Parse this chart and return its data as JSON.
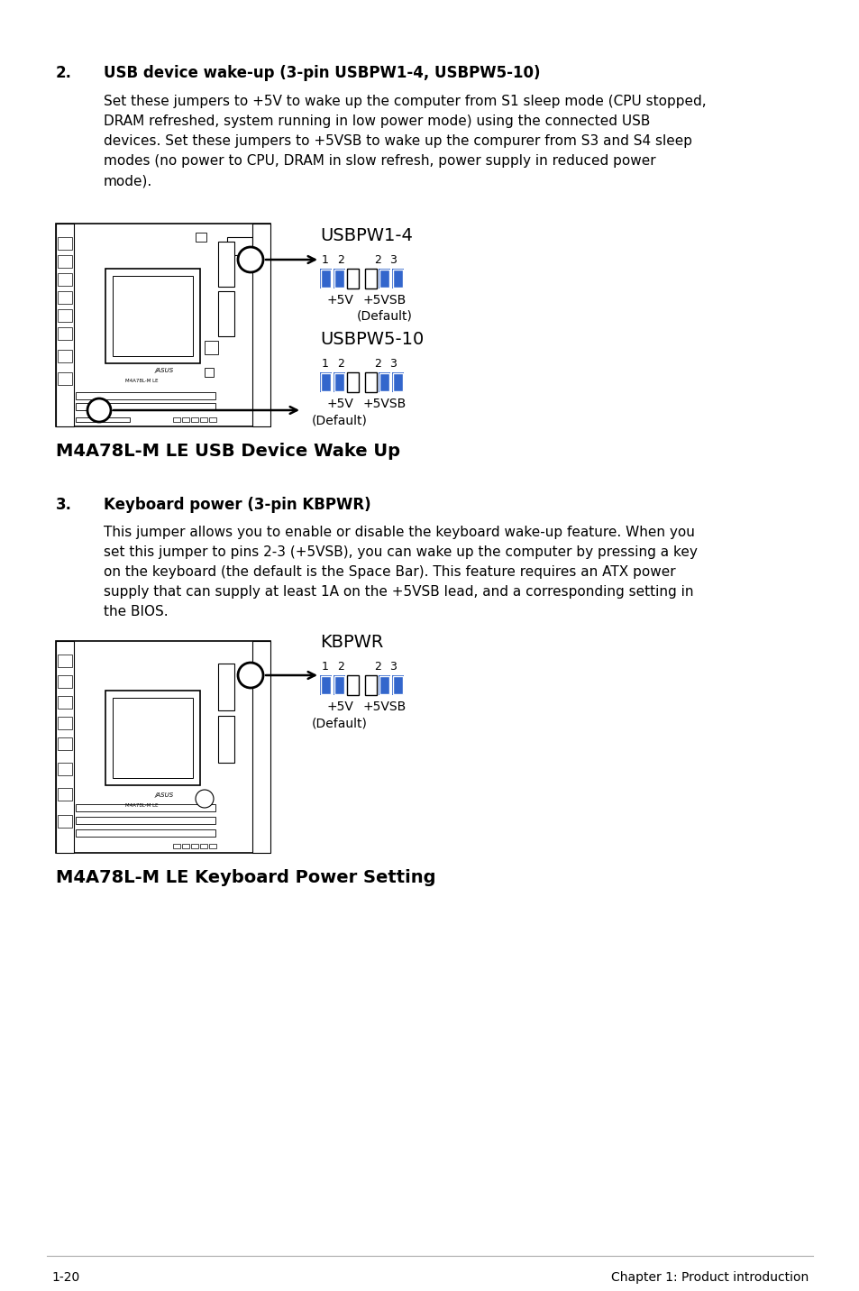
{
  "bg_color": "#ffffff",
  "text_color": "#000000",
  "blue_color": "#3366cc",
  "section2_number": "2.",
  "section2_heading": "USB device wake-up (3-pin USBPW1-4, USBPW5-10)",
  "section2_body1": "Set these jumpers to +5V to wake up the computer from S1 sleep mode (CPU stopped,",
  "section2_body2": "DRAM refreshed, system running in low power mode) using the connected USB",
  "section2_body3": "devices. Set these jumpers to +5VSB to wake up the compurer from S3 and S4 sleep",
  "section2_body4": "modes (no power to CPU, DRAM in slow refresh, power supply in reduced power",
  "section2_body5": "mode).",
  "usbpw14_label": "USBPW1-4",
  "usbpw510_label": "USBPW5-10",
  "fig1_caption": "M4A78L-M LE USB Device Wake Up",
  "section3_number": "3.",
  "section3_heading": "Keyboard power (3-pin KBPWR)",
  "section3_body1": "This jumper allows you to enable or disable the keyboard wake-up feature. When you",
  "section3_body2": "set this jumper to pins 2-3 (+5VSB), you can wake up the computer by pressing a key",
  "section3_body3": "on the keyboard (the default is the Space Bar). This feature requires an ATX power",
  "section3_body4": "supply that can supply at least 1A on the +5VSB lead, and a corresponding setting in",
  "section3_body5": "the BIOS.",
  "kbpwr_label": "KBPWR",
  "fig2_caption": "M4A78L-M LE Keyboard Power Setting",
  "footer_left": "1-20",
  "footer_right": "Chapter 1: Product introduction",
  "plus5v": "+5V",
  "plus5vsb": "+5VSB",
  "default_label": "(Default)",
  "asus_label": "/ASUS",
  "board_label": "M4A78L-M LE",
  "pin_1": "1",
  "pin_2a": "2",
  "pin_2b": "2",
  "pin_3": "3"
}
